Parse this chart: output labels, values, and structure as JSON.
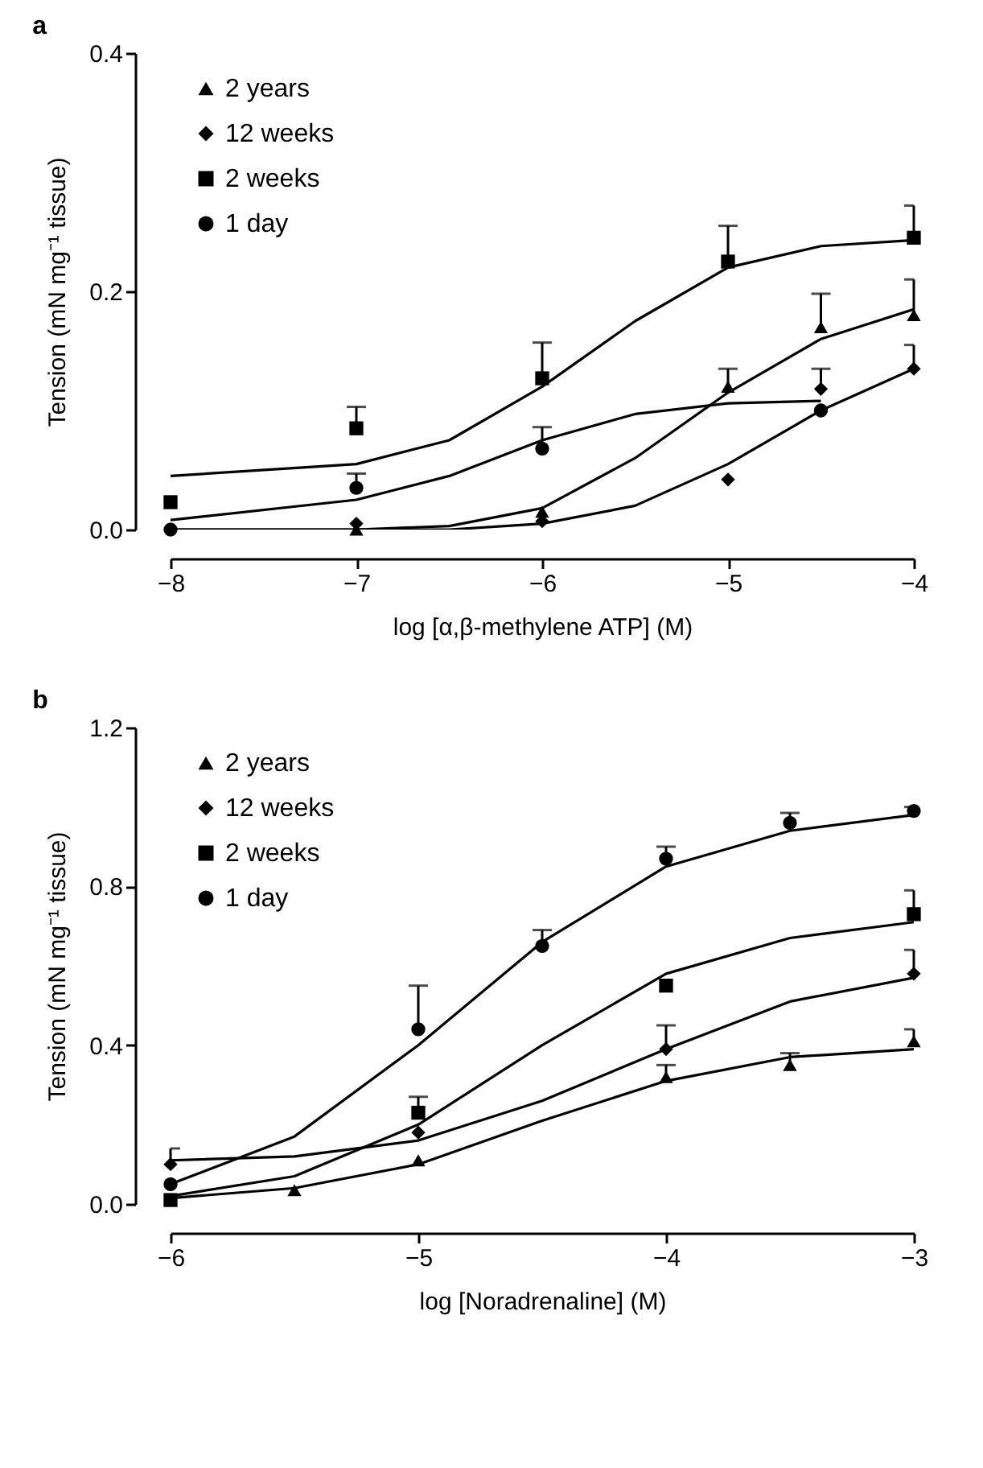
{
  "chart_data": [
    {
      "type": "scatter",
      "title": "a",
      "xlabel": "log [α,β-methylene ATP] (M)",
      "ylabel": "Tension (mN mg⁻¹ tissue)",
      "xlim": [
        -8,
        -4
      ],
      "xticks": [
        -8,
        -7,
        -6,
        -5,
        -4
      ],
      "ylim": [
        0,
        0.4
      ],
      "yticks": [
        {
          "value": 0,
          "label": "0.0"
        },
        {
          "value": 0.2,
          "label": "0.2"
        },
        {
          "value": 0.4,
          "label": "0.4"
        }
      ],
      "legend": "top left",
      "grid": false,
      "series": [
        {
          "name": "2 years",
          "color": "#000000",
          "marker": "triangle",
          "x": [
            -7,
            -6,
            -5,
            -4.5,
            -4
          ],
          "values": [
            0.0,
            0.015,
            0.12,
            0.17,
            0.18
          ],
          "errors": [
            null,
            null,
            [
              0.12,
              0.135
            ],
            [
              0.17,
              0.198
            ],
            [
              0.18,
              0.21
            ]
          ]
        },
        {
          "name": "12 weeks",
          "color": "#000000",
          "marker": "diamond",
          "x": [
            -7,
            -6,
            -5,
            -4.5,
            -4
          ],
          "values": [
            0.005,
            0.007,
            0.042,
            0.118,
            0.135
          ],
          "errors": [
            null,
            null,
            null,
            [
              0.118,
              0.135
            ],
            [
              0.135,
              0.155
            ]
          ]
        },
        {
          "name": "2 weeks",
          "color": "#000000",
          "marker": "square",
          "x": [
            -8,
            -7,
            -6,
            -5,
            -4
          ],
          "values": [
            0.023,
            0.085,
            0.127,
            0.225,
            0.245
          ],
          "errors": [
            null,
            [
              0.085,
              0.103
            ],
            [
              0.127,
              0.157
            ],
            [
              0.225,
              0.255
            ],
            [
              0.245,
              0.272
            ]
          ]
        },
        {
          "name": "1 day",
          "color": "#000000",
          "marker": "circle",
          "x": [
            -8,
            -7,
            -6,
            -4.5
          ],
          "values": [
            0.0,
            0.035,
            0.068,
            0.1
          ],
          "errors": [
            null,
            [
              0.035,
              0.047
            ],
            [
              0.068,
              0.086
            ],
            null
          ]
        },
        {
          "type": "line",
          "color": "#000000",
          "x": [
            -8,
            -7,
            -6.5,
            -6,
            -5.5,
            -5,
            -4.5,
            -4
          ],
          "values": [
            0.045,
            0.055,
            0.075,
            0.12,
            0.175,
            0.22,
            0.238,
            0.243
          ]
        },
        {
          "type": "line",
          "color": "#000000",
          "x": [
            -8,
            -7,
            -6.5,
            -6,
            -5.5,
            -5,
            -4.5
          ],
          "values": [
            0.008,
            0.025,
            0.045,
            0.075,
            0.097,
            0.106,
            0.108
          ]
        },
        {
          "type": "line",
          "color": "#000000",
          "x": [
            -8,
            -7,
            -6.5,
            -6,
            -5.5,
            -5,
            -4.5,
            -4
          ],
          "values": [
            0.0,
            0.0,
            0.003,
            0.018,
            0.06,
            0.115,
            0.16,
            0.185
          ]
        },
        {
          "type": "line",
          "color": "#000000",
          "x": [
            -8,
            -6.5,
            -6,
            -5.5,
            -5,
            -4.5,
            -4
          ],
          "values": [
            0.0,
            0.0,
            0.005,
            0.02,
            0.055,
            0.1,
            0.135
          ]
        }
      ]
    },
    {
      "type": "scatter",
      "title": "b",
      "xlabel": "log [Noradrenaline] (M)",
      "ylabel": "Tension (mN mg⁻¹ tissue)",
      "xlim": [
        -6,
        -3
      ],
      "xticks": [
        -6,
        -5,
        -4,
        -3
      ],
      "ylim": [
        0,
        1.2
      ],
      "yticks": [
        {
          "value": 0,
          "label": "0.0"
        },
        {
          "value": 0.4,
          "label": "0.4"
        },
        {
          "value": 0.8,
          "label": "0.8"
        },
        {
          "value": 1.2,
          "label": "1.2"
        }
      ],
      "legend": "top left",
      "grid": false,
      "series": [
        {
          "name": "2 years",
          "color": "#000000",
          "marker": "triangle",
          "x": [
            -5.5,
            -5,
            -4,
            -3.5,
            -3
          ],
          "values": [
            0.035,
            0.11,
            0.32,
            0.35,
            0.41
          ],
          "errors": [
            null,
            null,
            [
              0.32,
              0.35
            ],
            [
              0.35,
              0.38
            ],
            [
              0.41,
              0.44
            ]
          ]
        },
        {
          "name": "12 weeks",
          "color": "#000000",
          "marker": "diamond",
          "x": [
            -6,
            -5,
            -4,
            -3
          ],
          "values": [
            0.1,
            0.18,
            0.39,
            0.58
          ],
          "errors": [
            [
              0.1,
              0.14
            ],
            null,
            [
              0.39,
              0.45
            ],
            [
              0.58,
              0.64
            ]
          ]
        },
        {
          "name": "2 weeks",
          "color": "#000000",
          "marker": "square",
          "x": [
            -6,
            -5,
            -4,
            -3
          ],
          "values": [
            0.01,
            0.23,
            0.55,
            0.73
          ],
          "errors": [
            null,
            [
              0.23,
              0.27
            ],
            null,
            [
              0.73,
              0.79
            ]
          ]
        },
        {
          "name": "1 day",
          "color": "#000000",
          "marker": "circle",
          "x": [
            -6,
            -5,
            -4.5,
            -4,
            -3.5,
            -3
          ],
          "values": [
            0.05,
            0.44,
            0.65,
            0.87,
            0.96,
            0.99
          ],
          "errors": [
            null,
            [
              0.44,
              0.55
            ],
            [
              0.65,
              0.69
            ],
            [
              0.87,
              0.9
            ],
            [
              0.96,
              0.985
            ],
            [
              0.99,
              1.0
            ]
          ]
        },
        {
          "type": "line",
          "color": "#000000",
          "x": [
            -6,
            -5.5,
            -5,
            -4.5,
            -4,
            -3.5,
            -3
          ],
          "values": [
            0.05,
            0.17,
            0.4,
            0.66,
            0.85,
            0.94,
            0.98
          ]
        },
        {
          "type": "line",
          "color": "#000000",
          "x": [
            -6,
            -5.5,
            -5,
            -4.5,
            -4,
            -3.5,
            -3
          ],
          "values": [
            0.02,
            0.07,
            0.2,
            0.4,
            0.58,
            0.67,
            0.71
          ]
        },
        {
          "type": "line",
          "color": "#000000",
          "x": [
            -6,
            -5.5,
            -5,
            -4.5,
            -4,
            -3.5,
            -3
          ],
          "values": [
            0.11,
            0.12,
            0.16,
            0.26,
            0.39,
            0.51,
            0.57
          ]
        },
        {
          "type": "line",
          "color": "#000000",
          "x": [
            -6,
            -5.5,
            -5,
            -4.5,
            -4,
            -3.5,
            -3
          ],
          "values": [
            0.015,
            0.04,
            0.1,
            0.21,
            0.31,
            0.37,
            0.39
          ]
        }
      ]
    }
  ]
}
